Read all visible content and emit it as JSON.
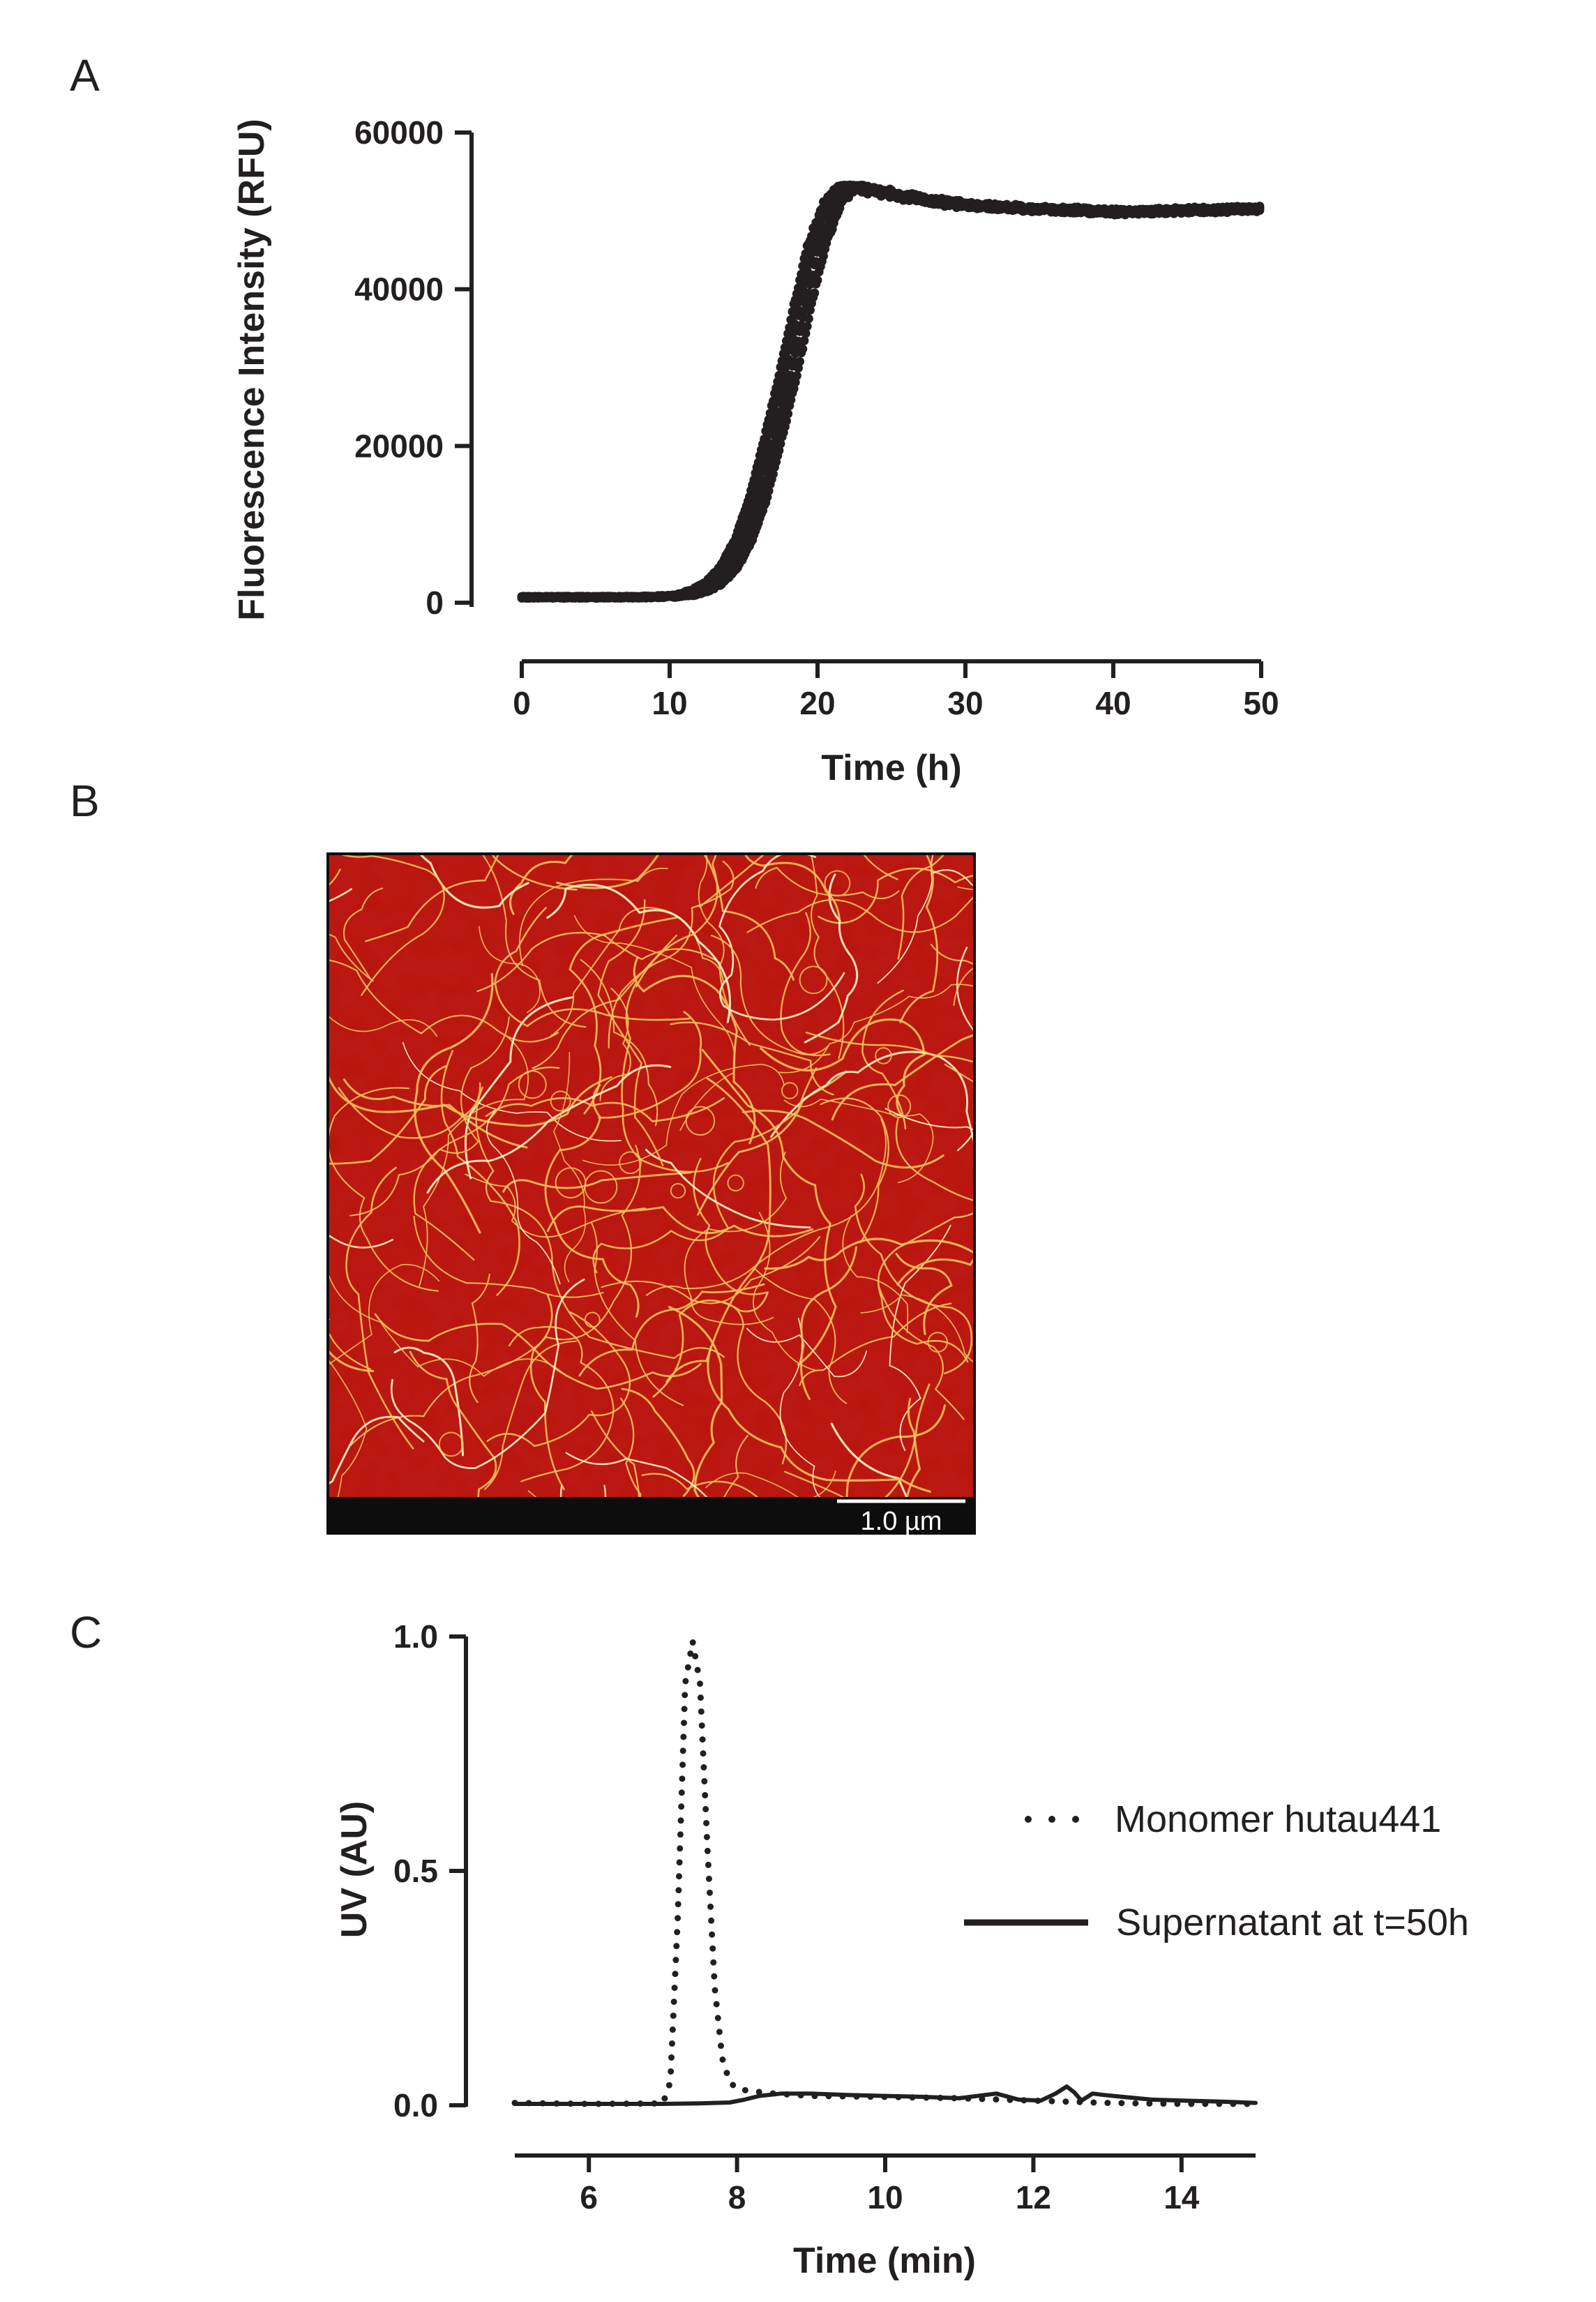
{
  "panels": {
    "a": "A",
    "b": "B",
    "c": "C"
  },
  "colors": {
    "ink": "#231f20",
    "afm_bg": "#b8140c",
    "fibril": "#f2c15a",
    "afm_bar": "#0d0d0d"
  },
  "chart_data": [
    {
      "panel": "A",
      "type": "scatter",
      "xlabel": "Time (h)",
      "ylabel": "Fluorescence Intensity (RFU)",
      "xlim": [
        0,
        50
      ],
      "ylim": [
        0,
        60000
      ],
      "xticks": [
        "0",
        "10",
        "20",
        "30",
        "40",
        "50"
      ],
      "yticks": [
        "0",
        "20000",
        "40000",
        "60000"
      ],
      "grid": false,
      "series": [
        {
          "x": [
            0,
            2,
            4,
            6,
            8,
            10,
            11,
            12,
            13,
            14,
            15,
            16,
            17,
            18,
            19,
            20,
            21,
            22,
            23,
            24,
            26,
            28,
            30,
            32,
            34,
            36,
            38,
            40,
            42,
            44,
            46,
            48,
            50
          ],
          "y": [
            700,
            700,
            700,
            700,
            700,
            800,
            1000,
            1500,
            2500,
            4500,
            8000,
            13500,
            21000,
            29000,
            38000,
            46000,
            51000,
            53000,
            53000,
            52500,
            51800,
            51200,
            50800,
            50500,
            50300,
            50200,
            50000,
            49900,
            49900,
            50000,
            50100,
            50200,
            50300
          ]
        }
      ]
    },
    {
      "panel": "B",
      "type": "image",
      "scale_bar": "1.0 µm"
    },
    {
      "panel": "C",
      "type": "line",
      "xlabel": "Time (min)",
      "ylabel": "UV (AU)",
      "xlim": [
        5,
        15
      ],
      "ylim": [
        0,
        1.0
      ],
      "xticks": [
        "6",
        "8",
        "10",
        "12",
        "14"
      ],
      "yticks": [
        "0.0",
        "0.5",
        "1.0"
      ],
      "legend_position": "right",
      "grid": false,
      "series": [
        {
          "name": "Monomer hutau441",
          "style": "dotted",
          "x": [
            5.0,
            6.0,
            7.0,
            7.1,
            7.2,
            7.3,
            7.4,
            7.5,
            7.6,
            7.7,
            7.8,
            7.9,
            8.0,
            8.2,
            8.5,
            9.0,
            10.0,
            11.0,
            12.0,
            13.0,
            14.0,
            15.0
          ],
          "y": [
            0.005,
            0.003,
            0.004,
            0.05,
            0.4,
            0.9,
            0.99,
            0.9,
            0.55,
            0.25,
            0.1,
            0.05,
            0.035,
            0.03,
            0.025,
            0.02,
            0.018,
            0.015,
            0.01,
            0.005,
            0.003,
            0.003
          ]
        },
        {
          "name": "Supernatant at t=50h",
          "style": "solid",
          "x": [
            5.0,
            6.0,
            7.0,
            7.5,
            7.9,
            8.1,
            8.3,
            8.6,
            9.0,
            9.5,
            10.0,
            10.5,
            11.0,
            11.5,
            11.8,
            12.1,
            12.3,
            12.45,
            12.55,
            12.65,
            12.8,
            12.95,
            13.2,
            13.6,
            14.0,
            14.5,
            15.0
          ],
          "y": [
            0.003,
            0.003,
            0.003,
            0.004,
            0.006,
            0.012,
            0.02,
            0.025,
            0.025,
            0.022,
            0.02,
            0.018,
            0.015,
            0.025,
            0.012,
            0.01,
            0.025,
            0.04,
            0.028,
            0.01,
            0.025,
            0.022,
            0.018,
            0.012,
            0.01,
            0.008,
            0.005
          ]
        }
      ]
    }
  ]
}
